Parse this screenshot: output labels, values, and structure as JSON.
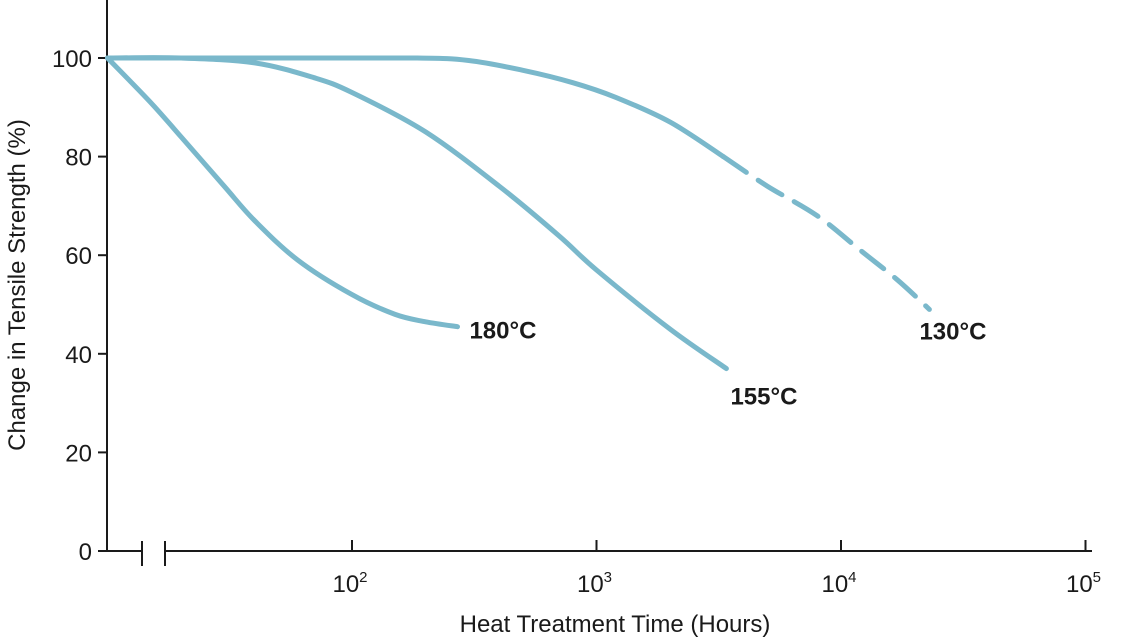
{
  "chart_data": {
    "type": "line",
    "title": "",
    "xlabel": "Heat Treatment Time (Hours)",
    "ylabel": "Change in Tensile Strength (%)",
    "x_scale": "log",
    "xlim": [
      10,
      100000
    ],
    "ylim": [
      0,
      100
    ],
    "x_axis_break": true,
    "x_ticks": [
      {
        "value": 100,
        "base": "10",
        "exp": "2"
      },
      {
        "value": 1000,
        "base": "10",
        "exp": "3"
      },
      {
        "value": 10000,
        "base": "10",
        "exp": "4"
      },
      {
        "value": 100000,
        "base": "10",
        "exp": "5"
      }
    ],
    "y_ticks": [
      0,
      20,
      40,
      60,
      80,
      100
    ],
    "grid": false,
    "line_color": "#7ab8cb",
    "series": [
      {
        "name": "180°C",
        "x": [
          10,
          15,
          20,
          30,
          40,
          60,
          100,
          150,
          200,
          270
        ],
        "y": [
          100,
          91,
          84,
          74,
          67,
          59,
          52,
          48,
          46.5,
          45.5
        ]
      },
      {
        "name": "155°C",
        "x": [
          10,
          20,
          40,
          70,
          100,
          200,
          400,
          700,
          1000,
          2000,
          3400
        ],
        "y": [
          100,
          100,
          99,
          96,
          93,
          85,
          74,
          64,
          57,
          45,
          37
        ]
      },
      {
        "name": "130°C",
        "x": [
          10,
          50,
          180,
          300,
          500,
          800,
          1200,
          2000,
          3300,
          5000,
          8000,
          12000,
          17000,
          23000
        ],
        "y": [
          100,
          100,
          100,
          99.5,
          97.5,
          95,
          92,
          87,
          80,
          74,
          68,
          61,
          55,
          49
        ],
        "dashed_from_x": 3300
      }
    ]
  }
}
